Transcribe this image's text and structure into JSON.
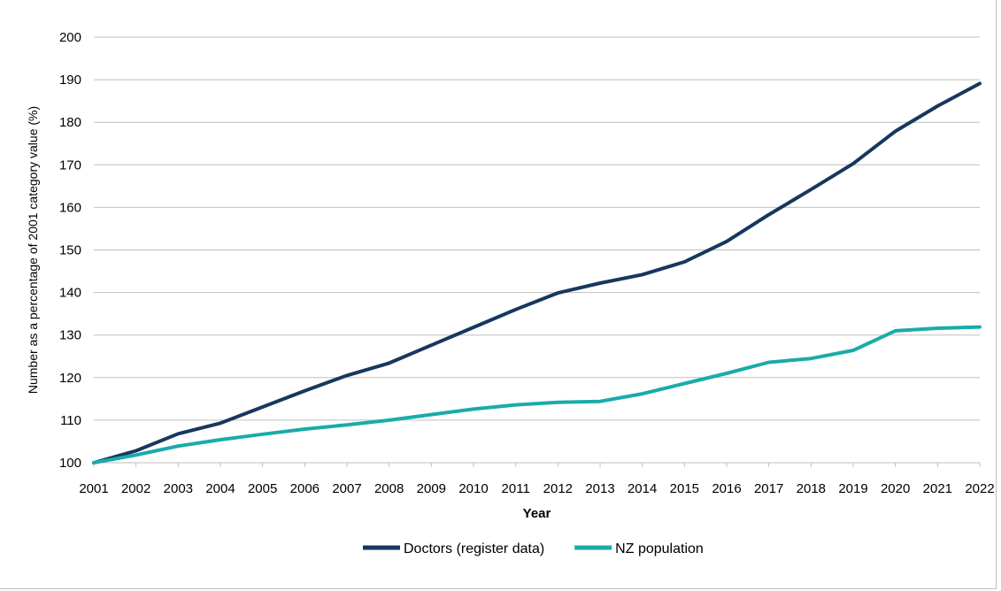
{
  "chart_data": {
    "type": "line",
    "xlabel": "Year",
    "ylabel": "Number as a percentage of 2001 category value (%)",
    "ylim": [
      100,
      200
    ],
    "yticks": [
      100,
      110,
      120,
      130,
      140,
      150,
      160,
      170,
      180,
      190,
      200
    ],
    "grid": true,
    "legend_position": "bottom",
    "x": [
      "2001",
      "2002",
      "2003",
      "2004",
      "2005",
      "2006",
      "2007",
      "2008",
      "2009",
      "2010",
      "2011",
      "2012",
      "2013",
      "2014",
      "2015",
      "2016",
      "2017",
      "2018",
      "2019",
      "2020",
      "2021",
      "2022"
    ],
    "series": [
      {
        "name": "Doctors (register data)",
        "color": "#17375e",
        "values": [
          100,
          102.8,
          106.8,
          109.3,
          113.1,
          116.9,
          120.5,
          123.4,
          127.6,
          131.8,
          136.0,
          139.9,
          142.2,
          144.2,
          147.2,
          152.0,
          158.3,
          164.2,
          170.3,
          177.9,
          183.8,
          189.1
        ]
      },
      {
        "name": "NZ population",
        "color": "#1aaba8",
        "values": [
          100,
          101.8,
          103.9,
          105.4,
          106.7,
          107.9,
          108.9,
          110.0,
          111.3,
          112.6,
          113.6,
          114.2,
          114.4,
          116.2,
          118.6,
          121.0,
          123.6,
          124.5,
          126.4,
          131.0,
          131.6,
          131.9
        ]
      }
    ]
  }
}
